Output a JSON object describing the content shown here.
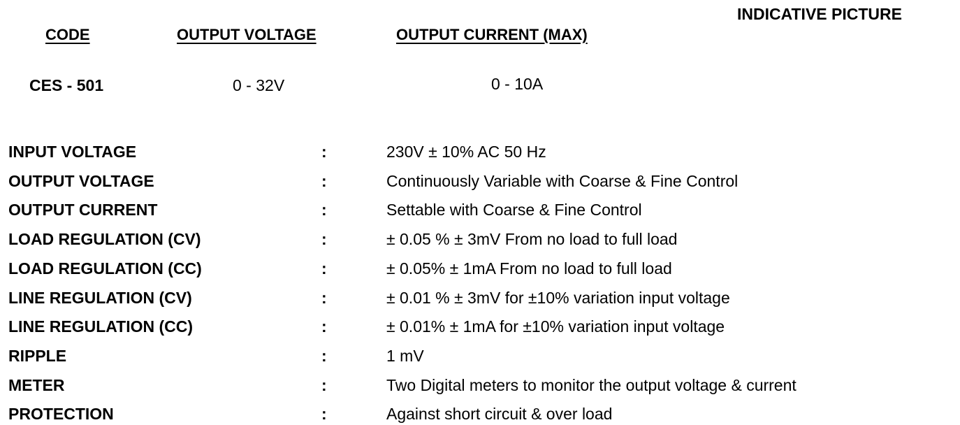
{
  "header": {
    "columns": [
      "CODE",
      "OUTPUT VOLTAGE",
      "OUTPUT CURRENT (MAX)"
    ],
    "picture_title": "INDICATIVE PICTURE"
  },
  "product": {
    "code": "CES - 501",
    "output_voltage": "0 - 32V",
    "output_current": "0 - 10A"
  },
  "specs": {
    "separator": ":",
    "rows": [
      {
        "label": "INPUT VOLTAGE",
        "value": "230V  ± 10% AC 50 Hz"
      },
      {
        "label": "OUTPUT VOLTAGE",
        "value": "Continuously Variable with Coarse & Fine Control"
      },
      {
        "label": "OUTPUT CURRENT",
        "value": "Settable with Coarse & Fine Control"
      },
      {
        "label": "LOAD REGULATION (CV)",
        "value": "± 0.05 % ± 3mV From no load to full load"
      },
      {
        "label": "LOAD REGULATION (CC)",
        "value": "± 0.05% ± 1mA From no load to full load"
      },
      {
        "label": "LINE REGULATION (CV)",
        "value": "± 0.01 % ± 3mV for ±10% variation input voltage"
      },
      {
        "label": "LINE REGULATION (CC)",
        "value": "± 0.01% ± 1mA for ±10% variation input voltage"
      },
      {
        "label": "RIPPLE",
        "value": "1 mV"
      },
      {
        "label": "METER",
        "value": "Two Digital meters to monitor the output voltage & current"
      },
      {
        "label": "PROTECTION",
        "value": "Against short circuit & over load"
      }
    ]
  }
}
